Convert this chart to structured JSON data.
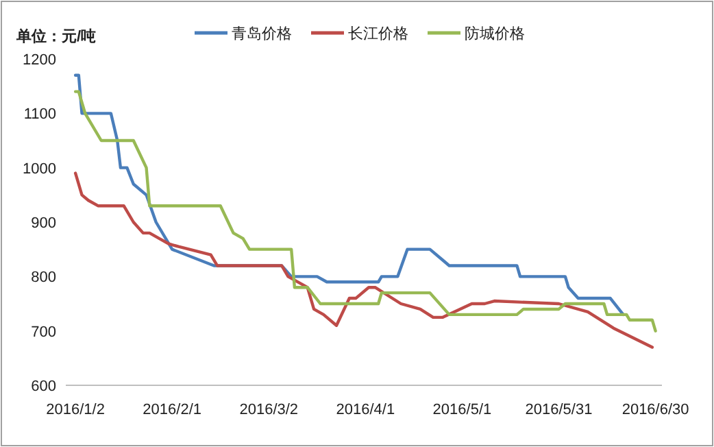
{
  "chart_data": {
    "type": "line",
    "ylabel": "单位：元/吨",
    "xlim": [
      "2015-12-30",
      "2016-07-02"
    ],
    "ylim": [
      600,
      1200
    ],
    "yticks": [
      600,
      700,
      800,
      900,
      1000,
      1100,
      1200
    ],
    "xticks": [
      {
        "value": "2016-01-02",
        "label": "2016/1/2"
      },
      {
        "value": "2016-02-01",
        "label": "2016/2/1"
      },
      {
        "value": "2016-03-02",
        "label": "2016/3/2"
      },
      {
        "value": "2016-04-01",
        "label": "2016/4/1"
      },
      {
        "value": "2016-05-01",
        "label": "2016/5/1"
      },
      {
        "value": "2016-05-31",
        "label": "2016/5/31"
      },
      {
        "value": "2016-06-30",
        "label": "2016/6/30"
      }
    ],
    "grid": false,
    "legend": "top",
    "marker": "none",
    "line_style": "solid",
    "series": [
      {
        "name": "青岛价格",
        "color": "#4a7ebb",
        "x": [
          "2016-01-02",
          "2016-01-03",
          "2016-01-04",
          "2016-01-13",
          "2016-01-15",
          "2016-01-16",
          "2016-01-18",
          "2016-01-20",
          "2016-01-24",
          "2016-01-27",
          "2016-02-01",
          "2016-02-14",
          "2016-03-06",
          "2016-03-09",
          "2016-03-17",
          "2016-03-20",
          "2016-04-05",
          "2016-04-06",
          "2016-04-11",
          "2016-04-14",
          "2016-04-21",
          "2016-04-25",
          "2016-04-27",
          "2016-05-18",
          "2016-05-19",
          "2016-06-02",
          "2016-06-03",
          "2016-06-06",
          "2016-06-16",
          "2016-06-20"
        ],
        "values": [
          1170,
          1170,
          1100,
          1100,
          1050,
          1000,
          1000,
          970,
          950,
          900,
          850,
          820,
          820,
          800,
          800,
          790,
          790,
          800,
          800,
          850,
          850,
          830,
          820,
          820,
          800,
          800,
          780,
          760,
          760,
          730
        ]
      },
      {
        "name": "长江价格",
        "color": "#be4b48",
        "x": [
          "2016-01-02",
          "2016-01-04",
          "2016-01-06",
          "2016-01-09",
          "2016-01-17",
          "2016-01-20",
          "2016-01-23",
          "2016-01-25",
          "2016-01-28",
          "2016-01-31",
          "2016-02-03",
          "2016-02-13",
          "2016-02-15",
          "2016-03-06",
          "2016-03-08",
          "2016-03-14",
          "2016-03-16",
          "2016-03-19",
          "2016-03-23",
          "2016-03-27",
          "2016-03-29",
          "2016-04-02",
          "2016-04-04",
          "2016-04-12",
          "2016-04-18",
          "2016-04-22",
          "2016-04-25",
          "2016-05-04",
          "2016-05-08",
          "2016-05-11",
          "2016-05-31",
          "2016-06-09",
          "2016-06-17",
          "2016-06-29"
        ],
        "values": [
          990,
          950,
          940,
          930,
          930,
          900,
          880,
          880,
          870,
          860,
          855,
          840,
          820,
          820,
          800,
          780,
          740,
          730,
          710,
          760,
          760,
          780,
          780,
          750,
          740,
          725,
          725,
          750,
          750,
          755,
          750,
          735,
          705,
          670
        ]
      },
      {
        "name": "防城价格",
        "color": "#98b954",
        "x": [
          "2016-01-02",
          "2016-01-03",
          "2016-01-05",
          "2016-01-10",
          "2016-01-20",
          "2016-01-24",
          "2016-01-25",
          "2016-02-16",
          "2016-02-20",
          "2016-02-23",
          "2016-02-25",
          "2016-03-09",
          "2016-03-10",
          "2016-03-14",
          "2016-03-18",
          "2016-04-05",
          "2016-04-06",
          "2016-04-21",
          "2016-04-27",
          "2016-05-18",
          "2016-05-20",
          "2016-05-31",
          "2016-06-02",
          "2016-06-14",
          "2016-06-15",
          "2016-06-21",
          "2016-06-22",
          "2016-06-29",
          "2016-06-30"
        ],
        "values": [
          1140,
          1140,
          1100,
          1050,
          1050,
          1000,
          930,
          930,
          880,
          870,
          850,
          850,
          780,
          780,
          750,
          750,
          770,
          770,
          730,
          730,
          740,
          740,
          750,
          750,
          730,
          730,
          720,
          720,
          700
        ]
      }
    ]
  }
}
